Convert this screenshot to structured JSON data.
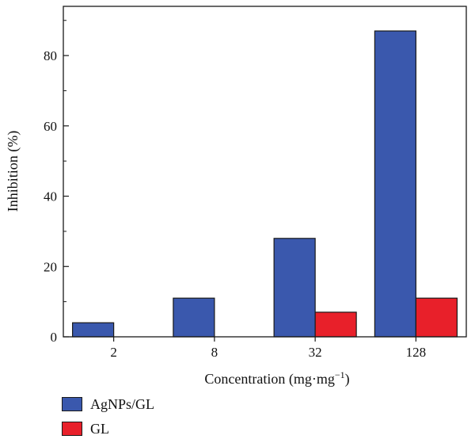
{
  "chart_data": {
    "type": "bar",
    "xlabel": "Concentration (mg·mg",
    "xlabel_sup": "−1",
    "xlabel_close": ")",
    "ylabel": "Inhibition (%)",
    "categories": [
      "2",
      "8",
      "32",
      "128"
    ],
    "ylim": [
      0,
      94
    ],
    "yticks": [
      0,
      20,
      40,
      60,
      80
    ],
    "grid": false,
    "legend_position": "bottom-left",
    "series": [
      {
        "name": "AgNPs/GL",
        "color": "#3a58ad",
        "values": [
          4,
          11,
          28,
          87
        ]
      },
      {
        "name": "GL",
        "color": "#e8202a",
        "values": [
          null,
          null,
          7,
          11
        ]
      }
    ]
  }
}
